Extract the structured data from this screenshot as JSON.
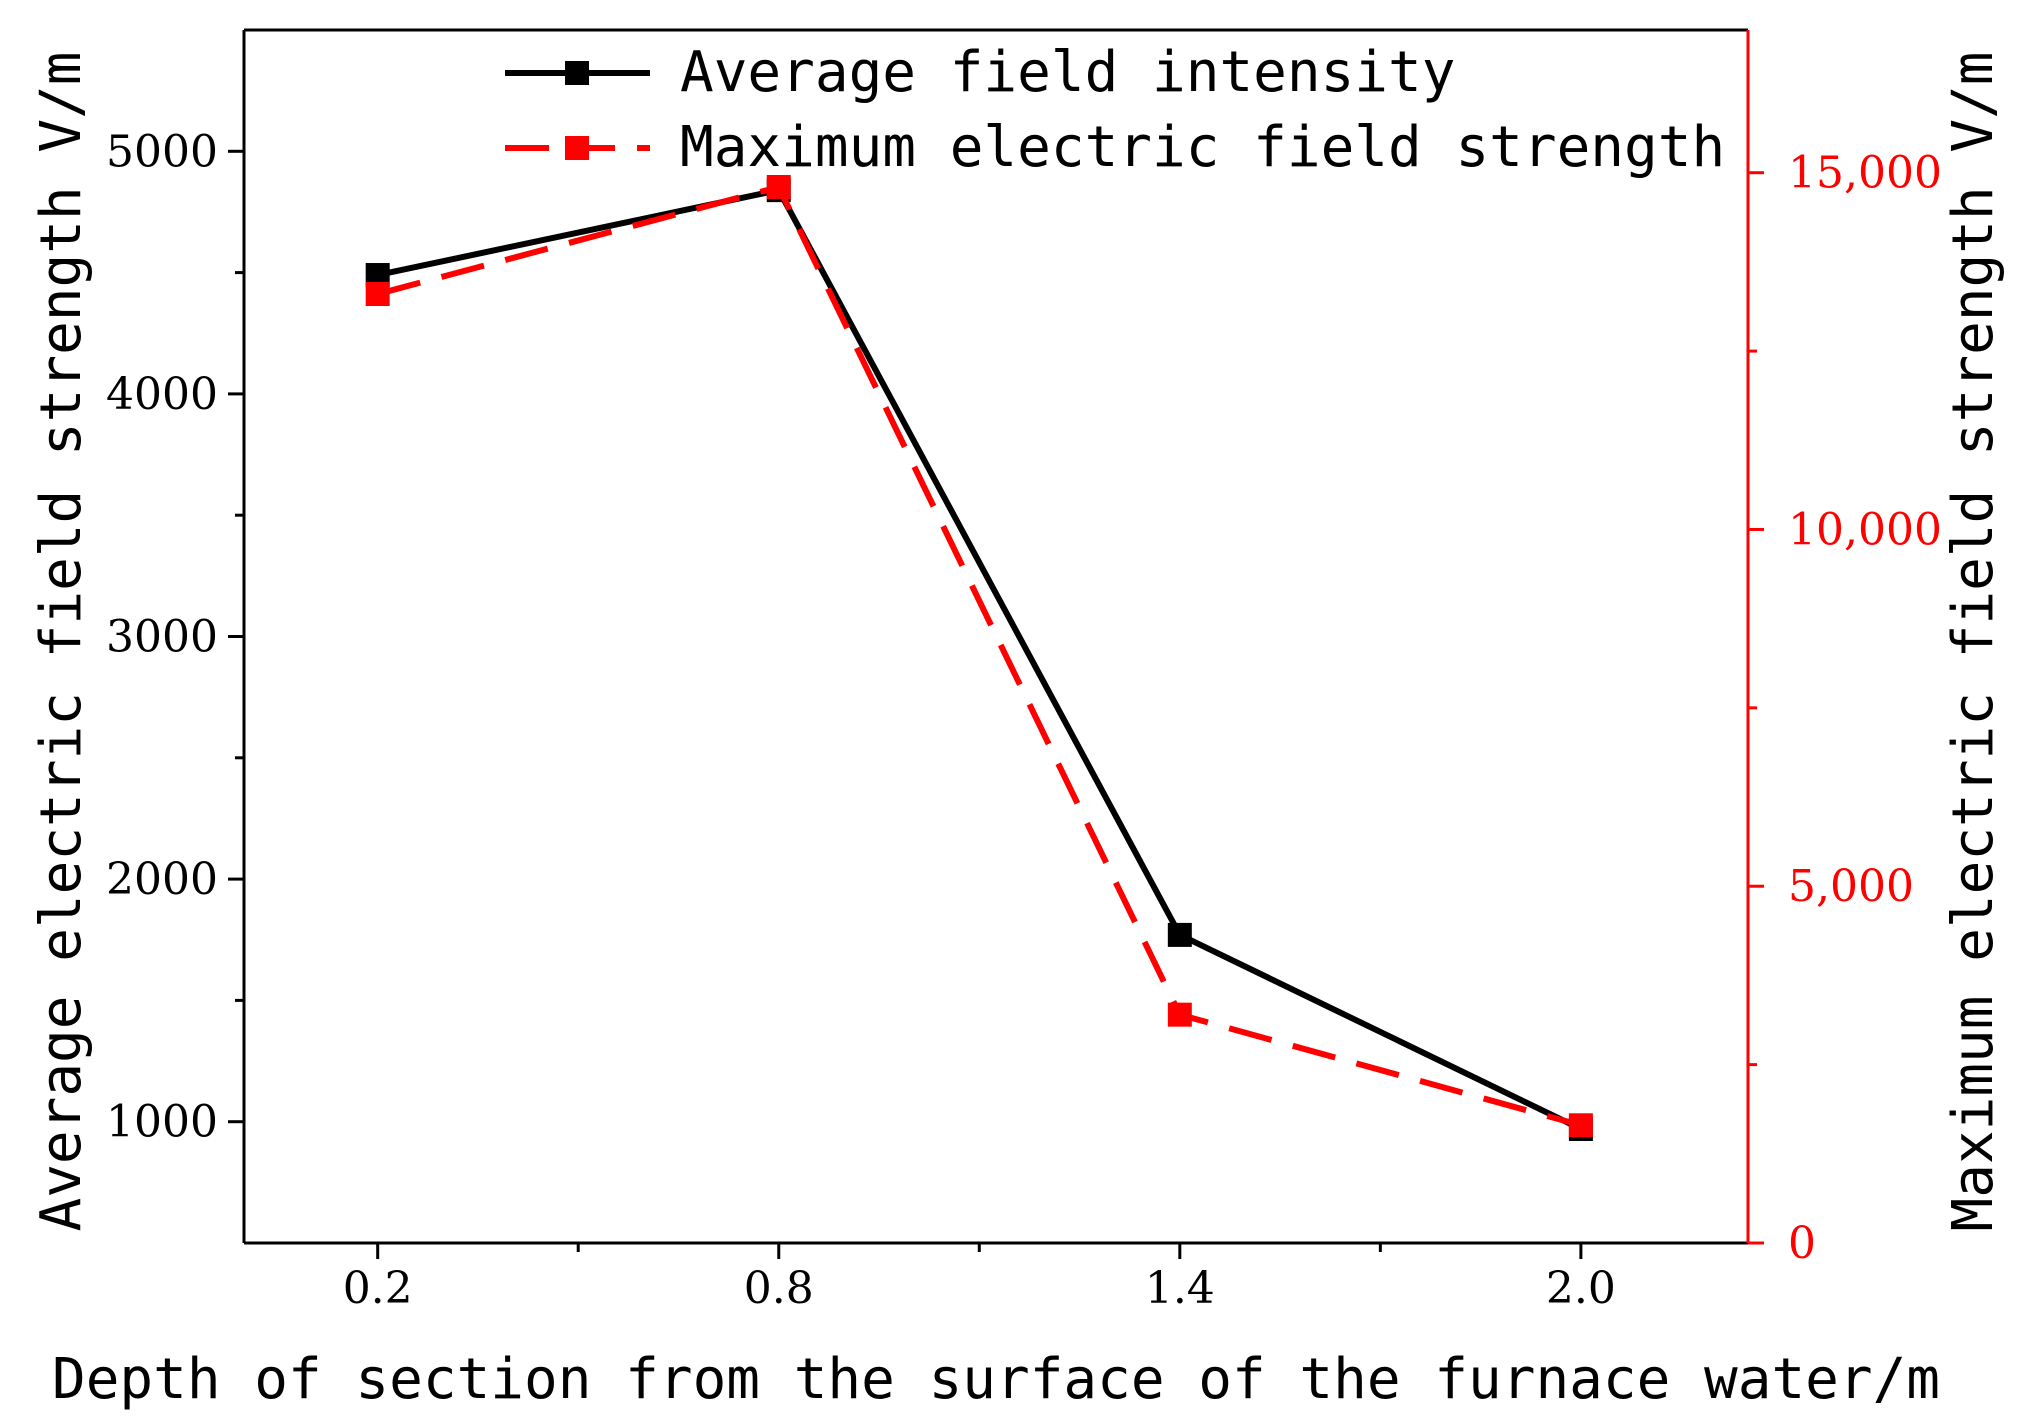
{
  "chart_data": {
    "type": "line",
    "x": [
      0.2,
      0.8,
      1.4,
      2.0
    ],
    "x_tick_labels": [
      "0.2",
      "0.8",
      "1.4",
      "2.0"
    ],
    "xlabel": "Depth of section from the surface of the furnace water/m",
    "xlim": [
      0.0,
      2.25
    ],
    "x_minor_ticks": [
      0.5,
      1.1,
      1.7
    ],
    "left_axis": {
      "label": "Average electric field strength V/m",
      "ylim": [
        500,
        5500
      ],
      "ticks": [
        1000,
        2000,
        3000,
        4000,
        5000
      ],
      "tick_labels": [
        "1000",
        "2000",
        "3000",
        "4000",
        "5000"
      ],
      "minor_ticks": [
        1500,
        2500,
        3500,
        4500
      ],
      "color": "#000000"
    },
    "right_axis": {
      "label": "Maximum electric field strength V/m",
      "ylim": [
        0,
        17000
      ],
      "ticks": [
        0,
        5000,
        10000,
        15000
      ],
      "tick_labels": [
        "0",
        "5,000",
        "10,000",
        "15,000"
      ],
      "minor_ticks": [
        2500,
        7500,
        12500
      ],
      "color": "#ff0000"
    },
    "series": [
      {
        "name": "Average field intensity",
        "axis": "left",
        "values": [
          4490,
          4840,
          1770,
          970
        ],
        "color": "#000000",
        "style": "solid",
        "marker": "square"
      },
      {
        "name": "Maximum electric field strength",
        "axis": "right",
        "values": [
          13300,
          14800,
          3200,
          1650
        ],
        "color": "#ff0000",
        "style": "dashed",
        "marker": "square"
      }
    ],
    "legend_position": "top-center"
  }
}
